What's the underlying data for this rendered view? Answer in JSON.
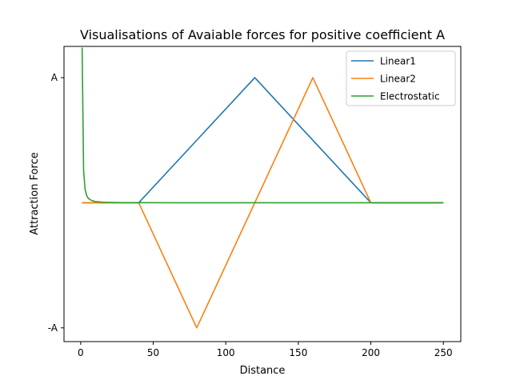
{
  "chart_data": {
    "type": "line",
    "title": "Visualisations of Avaiable forces for positive coefficient A",
    "xlabel": "Distance",
    "ylabel": "Attraction Force",
    "xlim": [
      -11.5,
      262
    ],
    "ylim": [
      -1.11,
      1.25
    ],
    "xticks": [
      0,
      50,
      100,
      150,
      200,
      250
    ],
    "yticks": [
      {
        "value": -1,
        "label": "-A"
      },
      {
        "value": 1,
        "label": "A"
      }
    ],
    "grid": false,
    "legend_position": "top-right",
    "series": [
      {
        "name": "Linear1",
        "color": "#1f77b4",
        "x": [
          1,
          40,
          120,
          200,
          250
        ],
        "y": [
          0,
          0,
          1,
          0,
          0
        ]
      },
      {
        "name": "Linear2",
        "color": "#ff7f0e",
        "x": [
          1,
          40,
          80,
          160,
          200,
          250
        ],
        "y": [
          0,
          0,
          -1,
          1,
          0,
          0
        ]
      },
      {
        "name": "Electrostatic",
        "color": "#2ca02c",
        "x": [
          1,
          2,
          3,
          4,
          5,
          6,
          8,
          10,
          15,
          20,
          30,
          40,
          60,
          100,
          150,
          200,
          250
        ],
        "y": [
          1.24,
          0.26,
          0.11,
          0.062,
          0.04,
          0.028,
          0.016,
          0.01,
          0.0045,
          0.0025,
          0.0011,
          0.0006,
          0.0003,
          0.0001,
          0.0,
          0.0,
          0.0
        ]
      }
    ]
  }
}
